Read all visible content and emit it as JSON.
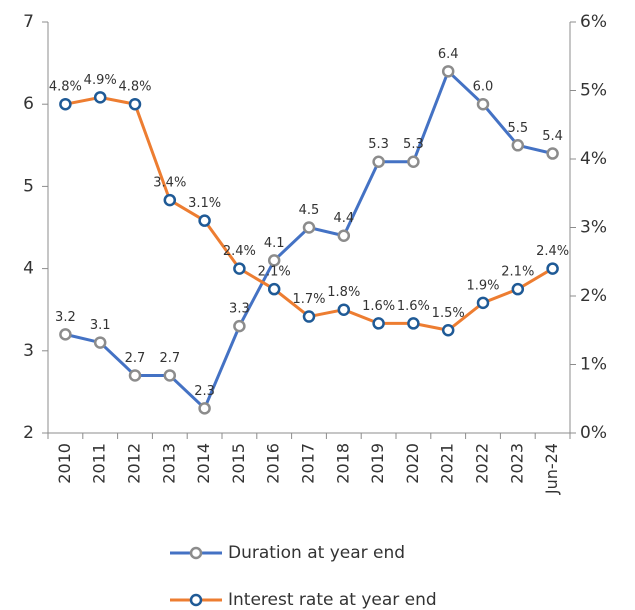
{
  "chart_data": {
    "type": "line",
    "categories": [
      "2010",
      "2011",
      "2012",
      "2013",
      "2014",
      "2015",
      "2016",
      "2017",
      "2018",
      "2019",
      "2020",
      "2021",
      "2022",
      "2023",
      "Jun-24"
    ],
    "series": [
      {
        "name": "Duration at year end",
        "color": "#4472c4",
        "marker_edge": "#8c8c8c",
        "values": [
          3.2,
          3.1,
          2.7,
          2.7,
          2.3,
          3.3,
          4.1,
          4.5,
          4.4,
          5.3,
          5.3,
          6.4,
          6.0,
          5.5,
          5.4
        ],
        "value_labels": [
          "3.2",
          "3.1",
          "2.7",
          "2.7",
          "2.3",
          "3.3",
          "4.1",
          "4.5",
          "4.4",
          "5.3",
          "5.3",
          "6.4",
          "6.0",
          "5.5",
          "5.4"
        ]
      },
      {
        "name": "Interest rate at year end",
        "color": "#ed7d31",
        "marker_edge": "#1f5a96",
        "axis": "y2",
        "values": [
          4.8,
          4.9,
          4.8,
          3.4,
          3.1,
          2.4,
          2.1,
          1.7,
          1.8,
          1.6,
          1.6,
          1.5,
          1.9,
          2.1,
          2.4
        ],
        "value_labels": [
          "4.8%",
          "4.9%",
          "4.8%",
          "3.4%",
          "3.1%",
          "2.4%",
          "2.1%",
          "1.7%",
          "1.8%",
          "1.6%",
          "1.6%",
          "1.5%",
          "1.9%",
          "2.1%",
          "2.4%"
        ]
      }
    ],
    "ylim": [
      2,
      7
    ],
    "yticks": [
      2,
      3,
      4,
      5,
      6,
      7
    ],
    "y2lim": [
      0,
      6
    ],
    "y2ticks": [
      {
        "value": 0,
        "label": "0%"
      },
      {
        "value": 1,
        "label": "1%"
      },
      {
        "value": 2,
        "label": "2%"
      },
      {
        "value": 3,
        "label": "3%"
      },
      {
        "value": 4,
        "label": "4%"
      },
      {
        "value": 5,
        "label": "5%"
      },
      {
        "value": 6,
        "label": "6%"
      }
    ]
  }
}
